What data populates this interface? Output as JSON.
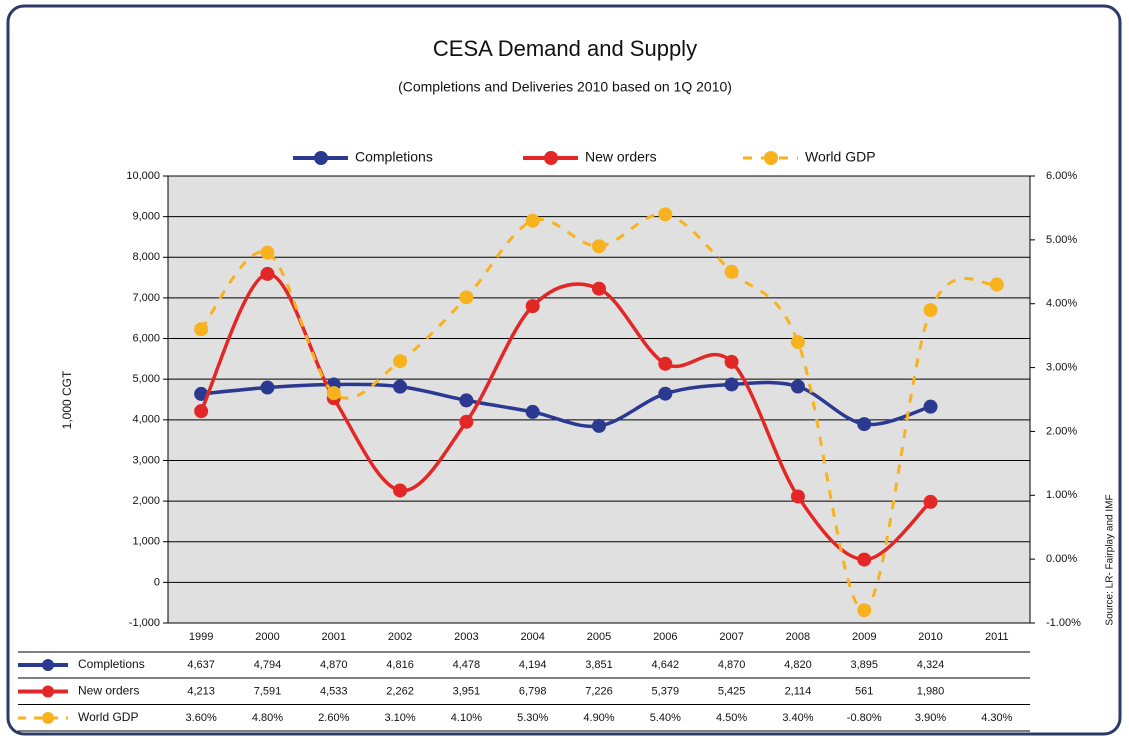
{
  "chart_data": {
    "type": "line",
    "title": "CESA Demand and Supply",
    "subtitle": "(Completions and Deliveries 2010 based on 1Q 2010)",
    "y_label": "1,000 CGT",
    "source": "Source: LR- Fairplay and IMF",
    "categories": [
      "1999",
      "2000",
      "2001",
      "2002",
      "2003",
      "2004",
      "2005",
      "2006",
      "2007",
      "2008",
      "2009",
      "2010",
      "2011"
    ],
    "ylim": [
      -1000,
      10000
    ],
    "yticks": [
      {
        "value": -1000,
        "label": "-1,000"
      },
      0,
      {
        "value": 1000,
        "label": "1,000"
      },
      {
        "value": 2000,
        "label": "2,000"
      },
      {
        "value": 3000,
        "label": "3,000"
      },
      {
        "value": 4000,
        "label": "4,000"
      },
      {
        "value": 5000,
        "label": "5,000"
      },
      {
        "value": 6000,
        "label": "6,000"
      },
      {
        "value": 7000,
        "label": "7,000"
      },
      {
        "value": 8000,
        "label": "8,000"
      },
      {
        "value": 9000,
        "label": "9,000"
      },
      {
        "value": 10000,
        "label": "10,000"
      }
    ],
    "y2lim": [
      -1,
      6
    ],
    "y2ticks": [
      {
        "value": -1,
        "label": "-1.00%"
      },
      {
        "value": 0,
        "label": "0.00%"
      },
      {
        "value": 1,
        "label": "1.00%"
      },
      {
        "value": 2,
        "label": "2.00%"
      },
      {
        "value": 3,
        "label": "3.00%"
      },
      {
        "value": 4,
        "label": "4.00%"
      },
      {
        "value": 5,
        "label": "5.00%"
      },
      {
        "value": 6,
        "label": "6.00%"
      }
    ],
    "grid": true,
    "legend": "top",
    "series": [
      {
        "name": "Completions",
        "color": "#2b3990",
        "values": [
          4637,
          4794,
          4870,
          4816,
          4478,
          4194,
          3851,
          4642,
          4870,
          4820,
          3895,
          4324,
          null
        ],
        "value_labels": [
          "4,637",
          "4,794",
          "4,870",
          "4,816",
          "4,478",
          "4,194",
          "3,851",
          "4,642",
          "4,870",
          "4,820",
          "3,895",
          "4,324",
          null
        ]
      },
      {
        "name": "New orders",
        "color": "#e32726",
        "values": [
          4213,
          7591,
          4533,
          2262,
          3951,
          6798,
          7226,
          5379,
          5425,
          2114,
          561,
          1980,
          null
        ],
        "value_labels": [
          "4,213",
          "7,591",
          "4,533",
          "2,262",
          "3,951",
          "6,798",
          "7,226",
          "5,379",
          "5,425",
          "2,114",
          "561",
          "1,980",
          null
        ]
      },
      {
        "name": "World GDP",
        "color": "#f7b21e",
        "axis": "y2",
        "dashed": true,
        "values": [
          3.6,
          4.8,
          2.6,
          3.1,
          4.1,
          5.3,
          4.9,
          5.4,
          4.5,
          3.4,
          -0.8,
          3.9,
          4.3
        ],
        "value_labels": [
          "3.60%",
          "4.80%",
          "2.60%",
          "3.10%",
          "4.10%",
          "5.30%",
          "4.90%",
          "5.40%",
          "4.50%",
          "3.40%",
          "-0.80%",
          "3.90%",
          "4.30%"
        ]
      }
    ]
  }
}
